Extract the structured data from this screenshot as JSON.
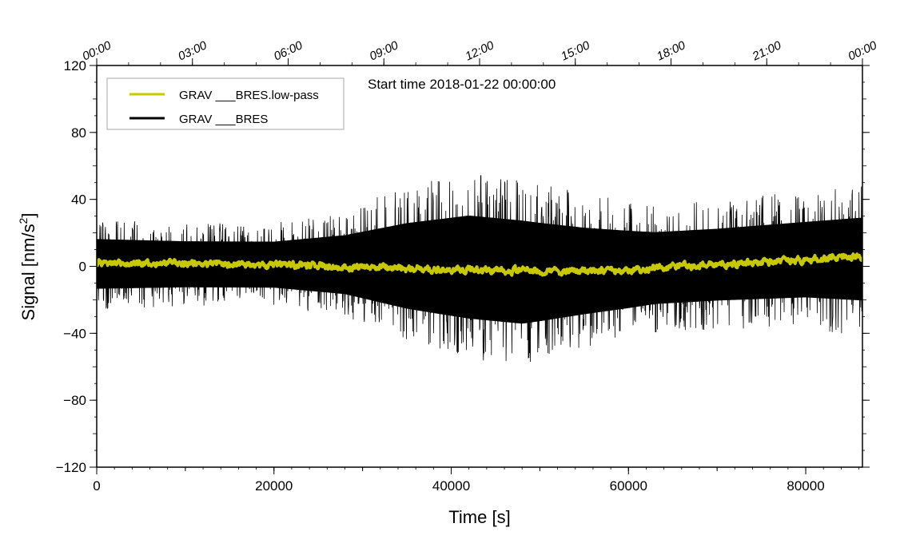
{
  "chart_data": {
    "type": "line",
    "title": "",
    "annotation": "Start time 2018-01-22 00:00:00",
    "xlabel": "Time [s]",
    "ylabel": "Signal [nm/s",
    "ylabel_sup": "2",
    "ylabel_close": "]",
    "xlim": [
      0,
      86400
    ],
    "ylim": [
      -120,
      120
    ],
    "x_ticks": [
      0,
      20000,
      40000,
      60000,
      80000
    ],
    "x_tick_labels": [
      "0",
      "20000",
      "40000",
      "60000",
      "80000"
    ],
    "y_ticks": [
      -120,
      -80,
      -40,
      0,
      40,
      80,
      120
    ],
    "y_tick_labels": [
      "−120",
      "−80",
      "−40",
      "0",
      "40",
      "80",
      "120"
    ],
    "top_ticks": [
      0,
      10800,
      21600,
      32400,
      43200,
      54000,
      64800,
      75600,
      86400
    ],
    "top_tick_labels": [
      "00:00",
      "03:00",
      "06:00",
      "09:00",
      "12:00",
      "15:00",
      "18:00",
      "21:00",
      "00:00"
    ],
    "legend": {
      "position": "top-left"
    },
    "series": [
      {
        "name": "GRAV ___BRES.low-pass",
        "color": "#c8c800",
        "kind": "smooth",
        "anchors": {
          "x": [
            0,
            20000,
            40000,
            50000,
            60000,
            70000,
            80000,
            86400
          ],
          "y": [
            2,
            1,
            -2,
            -3,
            -2,
            1,
            4,
            6
          ]
        },
        "noise": 1.5
      },
      {
        "name": "GRAV ___BRES",
        "color": "#000000",
        "kind": "noisy",
        "center_anchors": {
          "x": [
            0,
            20000,
            40000,
            50000,
            60000,
            70000,
            80000,
            86400
          ],
          "y": [
            2,
            1,
            -2,
            -3,
            -2,
            1,
            4,
            6
          ]
        },
        "envelope": {
          "x": [
            0,
            10000,
            20000,
            28000,
            35000,
            42000,
            48000,
            55000,
            63000,
            70000,
            80000,
            86400
          ],
          "upper": [
            28,
            26,
            26,
            34,
            48,
            57,
            52,
            44,
            38,
            40,
            45,
            48
          ],
          "lower": [
            -26,
            -24,
            -24,
            -30,
            -45,
            -55,
            -60,
            -50,
            -40,
            -38,
            -37,
            -42
          ]
        },
        "samples": 2200
      }
    ]
  }
}
